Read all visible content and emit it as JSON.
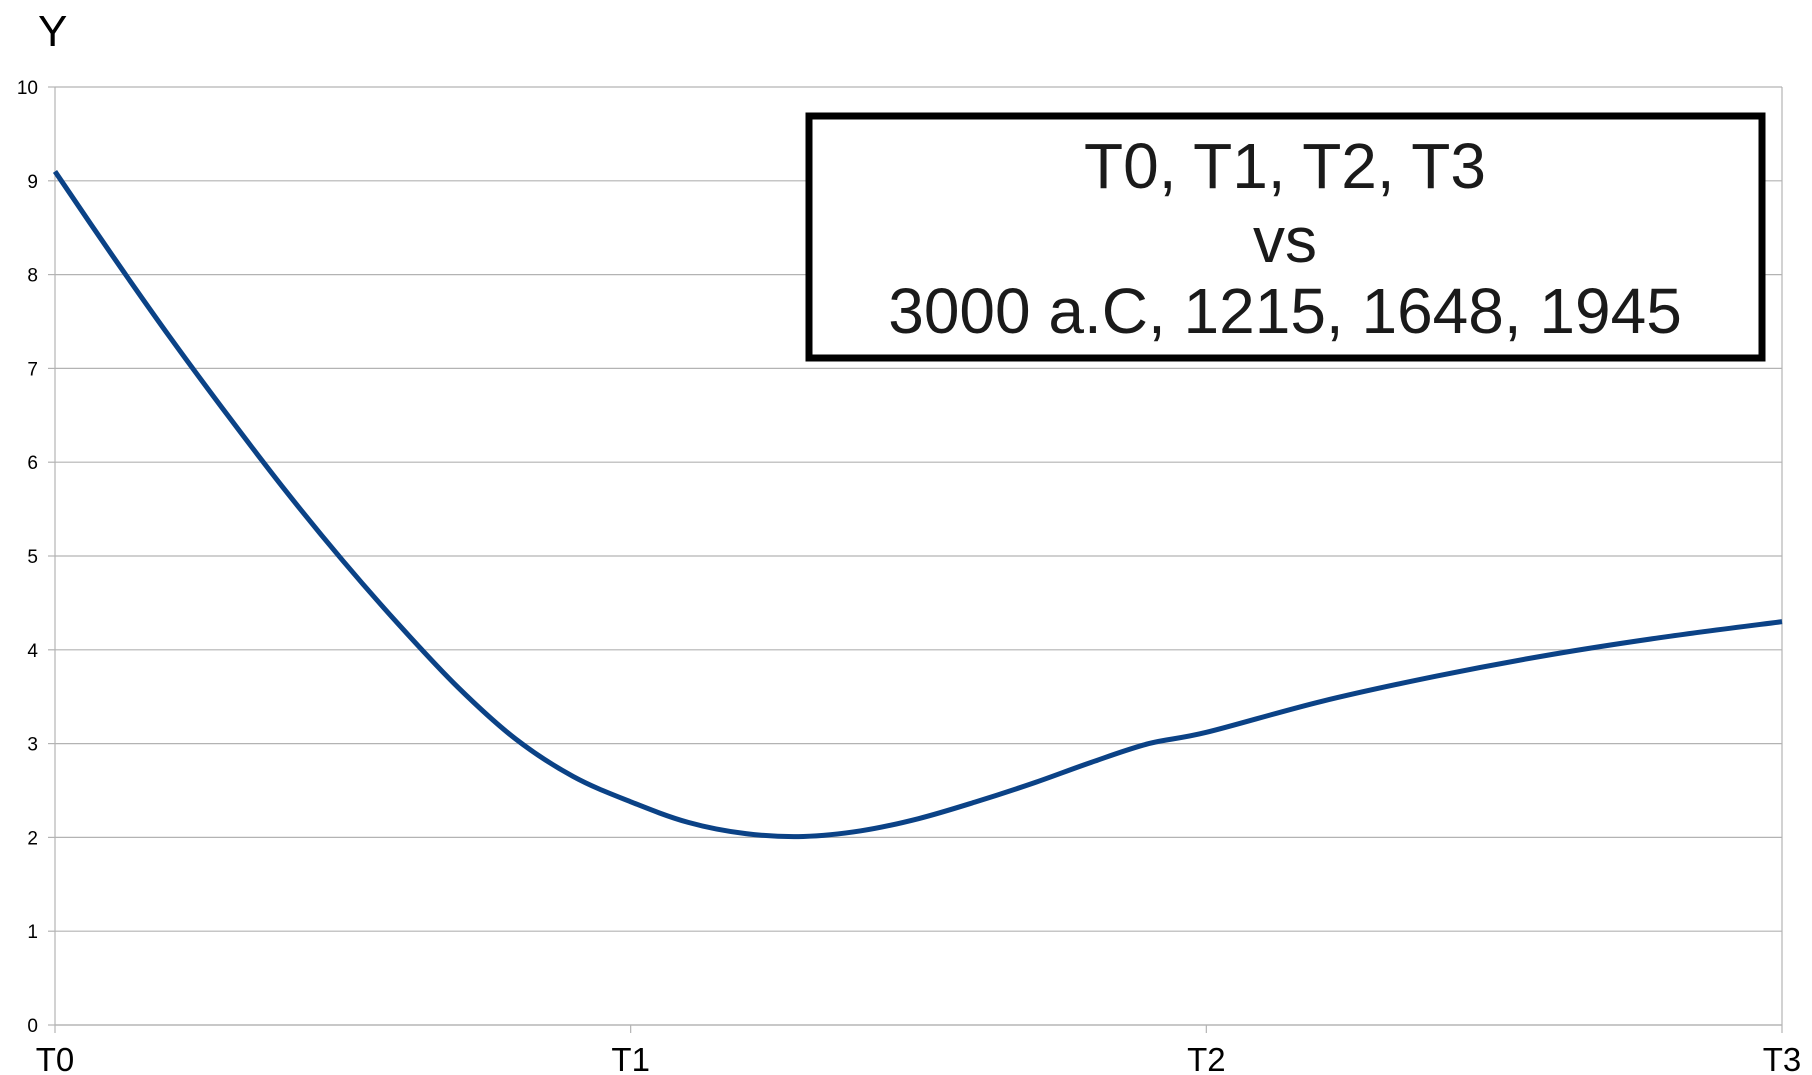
{
  "chart_data": {
    "type": "line",
    "ylabel": "Y",
    "xlabel": "",
    "categories": [
      "T0",
      "T1",
      "T2",
      "T3"
    ],
    "ylim": [
      0,
      10
    ],
    "yticks": [
      "0",
      "1",
      "2",
      "3",
      "4",
      "5",
      "6",
      "7",
      "8",
      "9",
      "10"
    ],
    "grid": true,
    "x": [
      0,
      0.1,
      0.2,
      0.3,
      0.4,
      0.5,
      0.6,
      0.7,
      0.8,
      0.9,
      1.0,
      1.1,
      1.2,
      1.3,
      1.4,
      1.5,
      1.6,
      1.7,
      1.8,
      1.9,
      2.0,
      2.2,
      2.4,
      2.6,
      2.8,
      3.0
    ],
    "series": [
      {
        "color": "#0b4286",
        "values": [
          9.1,
          8.2,
          7.33,
          6.5,
          5.7,
          4.95,
          4.25,
          3.6,
          3.05,
          2.65,
          2.38,
          2.16,
          2.04,
          2.01,
          2.07,
          2.2,
          2.38,
          2.58,
          2.8,
          3.0,
          3.12,
          3.45,
          3.72,
          3.95,
          4.14,
          4.3
        ]
      }
    ],
    "annotation": {
      "lines": [
        "T0, T1, T2, T3",
        "vs",
        "3000 a.C, 1215, 1648, 1945"
      ]
    }
  }
}
